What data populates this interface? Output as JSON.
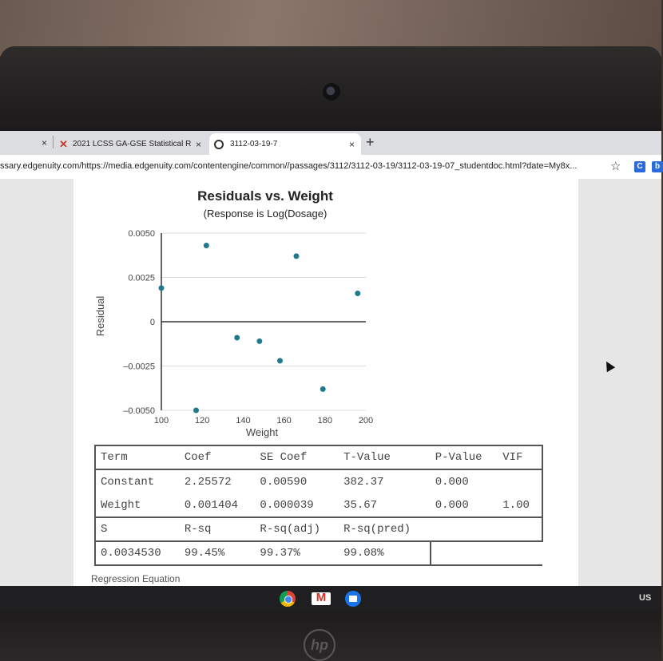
{
  "browser": {
    "tabs": [
      {
        "title": "2021 LCSS GA-GSE Statistical R",
        "icon": "edgenuity-x-icon"
      },
      {
        "title": "3112-03-19-7",
        "icon": "globe-icon"
      }
    ],
    "url": "ssary.edgenuity.com/https://media.edgenuity.com/contentengine/common//passages/3112/3112-03-19/3112-03-19-07_studentdoc.html?date=My8x...",
    "extensions": [
      "C",
      "b"
    ]
  },
  "chart_data": {
    "type": "scatter",
    "title": "Residuals vs. Weight",
    "subtitle": "(Response is Log(Dosage)",
    "xlabel": "Weight",
    "ylabel": "Residual",
    "xlim": [
      100,
      200
    ],
    "ylim": [
      -0.005,
      0.005
    ],
    "xticks": [
      "100",
      "120",
      "140",
      "160",
      "180",
      "200"
    ],
    "yticks": [
      "0.0050",
      "0.0025",
      "0",
      "–0.0025",
      "–0.0050"
    ],
    "ytick_values": [
      0.005,
      0.0025,
      0,
      -0.0025,
      -0.005
    ],
    "xtick_values": [
      100,
      120,
      140,
      160,
      180,
      200
    ],
    "grid": true,
    "point_color": "#1f7a8c",
    "points": [
      {
        "x": 100,
        "y": 0.0019
      },
      {
        "x": 117,
        "y": -0.005
      },
      {
        "x": 122,
        "y": 0.0043
      },
      {
        "x": 137,
        "y": -0.0009
      },
      {
        "x": 148,
        "y": -0.0011
      },
      {
        "x": 158,
        "y": -0.0022
      },
      {
        "x": 166,
        "y": 0.0037
      },
      {
        "x": 179,
        "y": -0.0038
      },
      {
        "x": 196,
        "y": 0.0016
      }
    ]
  },
  "table": {
    "headers": [
      "Term",
      "Coef",
      "SE Coef",
      "T-Value",
      "P-Value",
      "VIF"
    ],
    "rows": [
      [
        "Constant",
        "2.25572",
        "0.00590",
        "382.37",
        "0.000",
        ""
      ],
      [
        "Weight",
        "0.001404",
        "0.000039",
        "35.67",
        "0.000",
        "1.00"
      ]
    ],
    "summary_headers": [
      "S",
      "R-sq",
      "R-sq(adj)",
      "R-sq(pred)"
    ],
    "summary_values": [
      "0.0034530",
      "99.45%",
      "99.37%",
      "99.08%"
    ]
  },
  "regression_label": "Regression Equation",
  "shelf": {
    "apps": [
      "chrome-icon",
      "gmail-icon",
      "files-icon"
    ],
    "ime": "US"
  },
  "hp_logo": "hp"
}
